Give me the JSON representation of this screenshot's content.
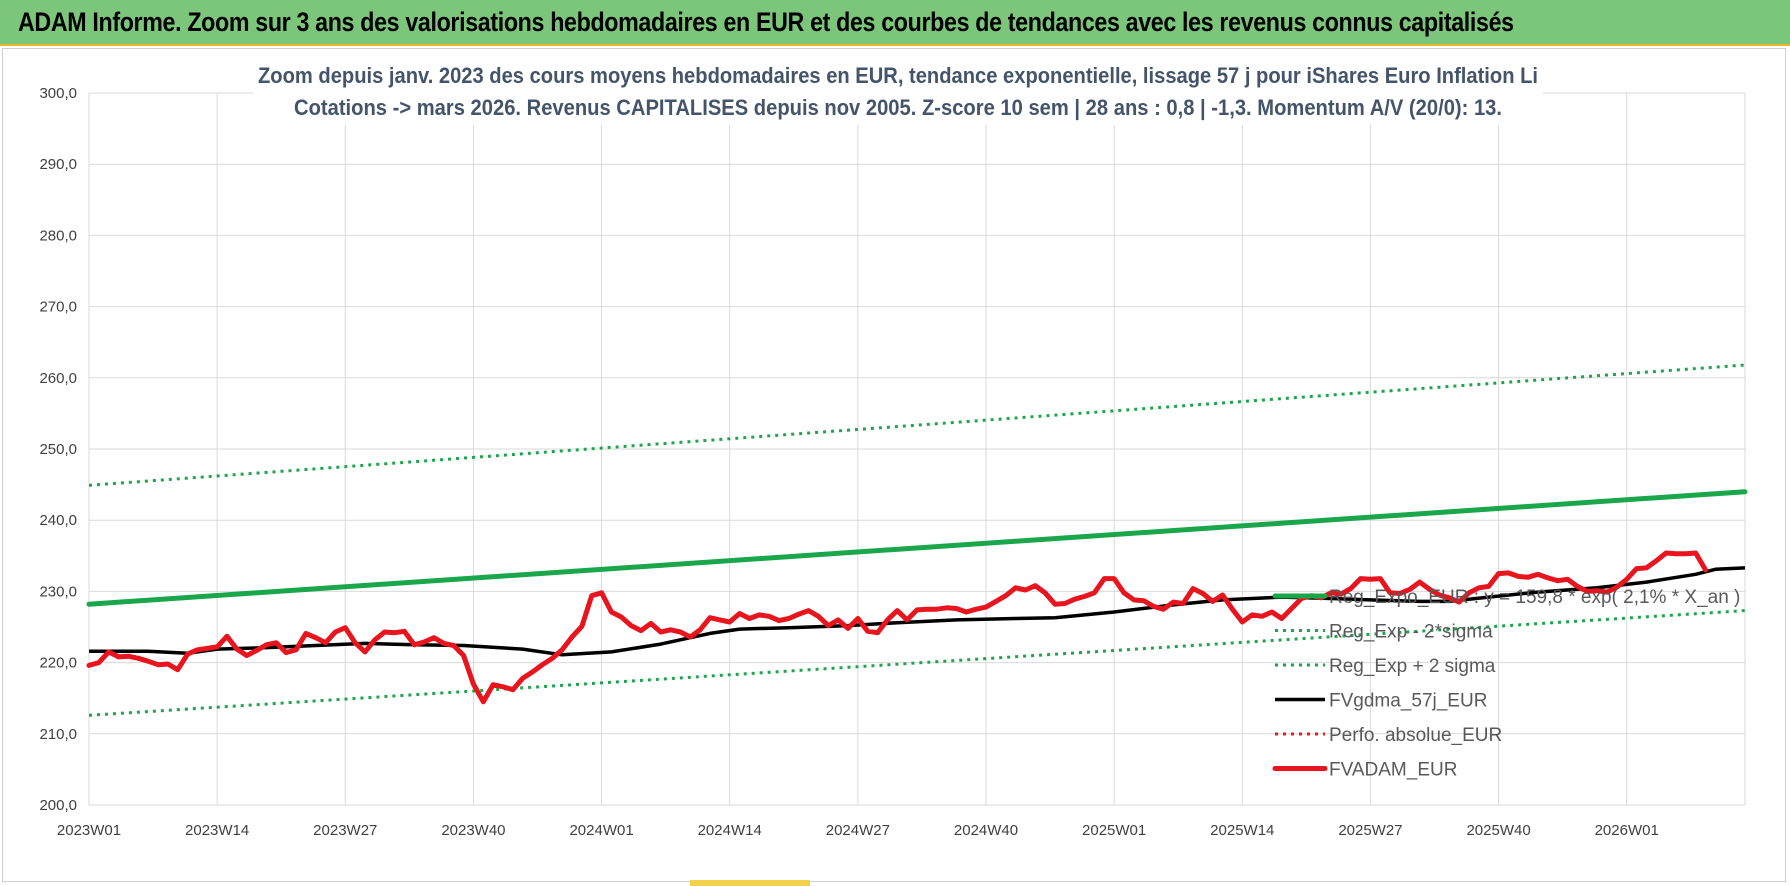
{
  "header": {
    "banner": "ADAM Informe. Zoom sur 3 ans des valorisations hebdomadaires en EUR et des courbes de tendances avec les revenus connus capitalisés"
  },
  "chart_data": {
    "type": "line",
    "title": [
      "Zoom depuis janv. 2023 des cours moyens hebdomadaires en EUR, tendance exponentielle, lissage 57 j pour iShares Euro Inflation Li",
      "Cotations -> mars 2026. Revenus CAPITALISES depuis nov 2005. Z-score 10 sem | 28 ans : 0,8 | -1,3. Momentum A/V (20/0): 13."
    ],
    "xlabel": "",
    "ylabel": "",
    "ylim": [
      200,
      300
    ],
    "yticks": [
      "200,0",
      "210,0",
      "220,0",
      "230,0",
      "240,0",
      "250,0",
      "260,0",
      "270,0",
      "280,0",
      "290,0",
      "300,0"
    ],
    "xticks": [
      "2023W01",
      "2023W14",
      "2023W27",
      "2023W40",
      "2024W01",
      "2024W14",
      "2024W27",
      "2024W40",
      "2025W01",
      "2025W14",
      "2025W27",
      "2025W40",
      "2026W01"
    ],
    "x_start_week_index": 0,
    "x_end_week_index": 168,
    "grid": true,
    "legend_position": "right",
    "series": [
      {
        "name": "Reg_Expo_EUR : y = 159,8 * exp( 2,1% * X_an )",
        "color": "#1aa64a",
        "style": "solid-thick",
        "points": [
          [
            0,
            228.2
          ],
          [
            168,
            244.0
          ]
        ]
      },
      {
        "name": "Reg_Exp - 2*sigma",
        "color": "#1aa64a",
        "style": "dotted",
        "points": [
          [
            0,
            212.6
          ],
          [
            168,
            227.3
          ]
        ]
      },
      {
        "name": "Reg_Exp + 2 sigma",
        "color": "#1aa64a",
        "style": "dotted",
        "points": [
          [
            0,
            244.9
          ],
          [
            168,
            261.8
          ]
        ]
      },
      {
        "name": "FVgdma_57j_EUR",
        "color": "#000000",
        "style": "solid",
        "points": [
          [
            0,
            221.6
          ],
          [
            6,
            221.6
          ],
          [
            10,
            221.3
          ],
          [
            13,
            221.9
          ],
          [
            18,
            222.1
          ],
          [
            23,
            222.4
          ],
          [
            28,
            222.7
          ],
          [
            33,
            222.5
          ],
          [
            38,
            222.4
          ],
          [
            44,
            221.9
          ],
          [
            48,
            221.1
          ],
          [
            53,
            221.5
          ],
          [
            58,
            222.6
          ],
          [
            63,
            224.1
          ],
          [
            66,
            224.7
          ],
          [
            71,
            224.9
          ],
          [
            77,
            225.2
          ],
          [
            82,
            225.6
          ],
          [
            88,
            226.0
          ],
          [
            94,
            226.2
          ],
          [
            98,
            226.3
          ],
          [
            104,
            227.1
          ],
          [
            110,
            228.1
          ],
          [
            115,
            228.8
          ],
          [
            121,
            229.2
          ],
          [
            126,
            229.0
          ],
          [
            130,
            228.8
          ],
          [
            135,
            228.6
          ],
          [
            138,
            228.6
          ],
          [
            142,
            229.2
          ],
          [
            147,
            229.9
          ],
          [
            153,
            230.5
          ],
          [
            158,
            231.3
          ],
          [
            163,
            232.4
          ],
          [
            165,
            233.1
          ],
          [
            168,
            233.3
          ]
        ]
      },
      {
        "name": "Perfo. absolue_EUR",
        "color": "#e02020",
        "style": "dotted",
        "points": []
      },
      {
        "name": "FVADAM_EUR",
        "color": "#e8141e",
        "style": "solid-thick",
        "points": [
          [
            0,
            219.6
          ],
          [
            1,
            220.0
          ],
          [
            2,
            221.5
          ],
          [
            3,
            220.8
          ],
          [
            4,
            220.9
          ],
          [
            5,
            220.6
          ],
          [
            6,
            220.2
          ],
          [
            7,
            219.7
          ],
          [
            8,
            219.8
          ],
          [
            9,
            219.0
          ],
          [
            10,
            221.2
          ],
          [
            11,
            221.8
          ],
          [
            12,
            222.0
          ],
          [
            13,
            222.2
          ],
          [
            14,
            223.7
          ],
          [
            15,
            221.9
          ],
          [
            16,
            221.0
          ],
          [
            17,
            221.7
          ],
          [
            18,
            222.5
          ],
          [
            19,
            222.8
          ],
          [
            20,
            221.4
          ],
          [
            21,
            221.8
          ],
          [
            22,
            224.1
          ],
          [
            23,
            223.5
          ],
          [
            24,
            222.8
          ],
          [
            25,
            224.3
          ],
          [
            26,
            224.9
          ],
          [
            27,
            222.8
          ],
          [
            28,
            221.5
          ],
          [
            29,
            223.2
          ],
          [
            30,
            224.3
          ],
          [
            31,
            224.2
          ],
          [
            32,
            224.4
          ],
          [
            33,
            222.5
          ],
          [
            34,
            222.9
          ],
          [
            35,
            223.5
          ],
          [
            36,
            222.7
          ],
          [
            37,
            222.4
          ],
          [
            38,
            221.0
          ],
          [
            39,
            217.0
          ],
          [
            40,
            214.5
          ],
          [
            41,
            216.9
          ],
          [
            42,
            216.6
          ],
          [
            43,
            216.2
          ],
          [
            44,
            217.8
          ],
          [
            45,
            218.7
          ],
          [
            46,
            219.7
          ],
          [
            47,
            220.6
          ],
          [
            48,
            221.8
          ],
          [
            49,
            223.6
          ],
          [
            50,
            225.1
          ],
          [
            51,
            229.4
          ],
          [
            52,
            229.8
          ],
          [
            53,
            227.1
          ],
          [
            54,
            226.4
          ],
          [
            55,
            225.2
          ],
          [
            56,
            224.5
          ],
          [
            57,
            225.5
          ],
          [
            58,
            224.3
          ],
          [
            59,
            224.6
          ],
          [
            60,
            224.3
          ],
          [
            61,
            223.6
          ],
          [
            62,
            224.6
          ],
          [
            63,
            226.3
          ],
          [
            64,
            226.0
          ],
          [
            65,
            225.7
          ],
          [
            66,
            226.9
          ],
          [
            67,
            226.2
          ],
          [
            68,
            226.7
          ],
          [
            69,
            226.5
          ],
          [
            70,
            225.9
          ],
          [
            71,
            226.2
          ],
          [
            72,
            226.8
          ],
          [
            73,
            227.3
          ],
          [
            74,
            226.5
          ],
          [
            75,
            225.2
          ],
          [
            76,
            226.0
          ],
          [
            77,
            224.8
          ],
          [
            78,
            226.2
          ],
          [
            79,
            224.4
          ],
          [
            80,
            224.2
          ],
          [
            81,
            226.0
          ],
          [
            82,
            227.3
          ],
          [
            83,
            226.0
          ],
          [
            84,
            227.4
          ],
          [
            85,
            227.5
          ],
          [
            86,
            227.5
          ],
          [
            87,
            227.7
          ],
          [
            88,
            227.6
          ],
          [
            89,
            227.1
          ],
          [
            90,
            227.5
          ],
          [
            91,
            227.8
          ],
          [
            92,
            228.6
          ],
          [
            93,
            229.4
          ],
          [
            94,
            230.5
          ],
          [
            95,
            230.2
          ],
          [
            96,
            230.8
          ],
          [
            97,
            229.8
          ],
          [
            98,
            228.2
          ],
          [
            99,
            228.3
          ],
          [
            100,
            228.9
          ],
          [
            101,
            229.3
          ],
          [
            102,
            229.8
          ],
          [
            103,
            231.8
          ],
          [
            104,
            231.8
          ],
          [
            105,
            229.8
          ],
          [
            106,
            228.8
          ],
          [
            107,
            228.7
          ],
          [
            108,
            227.9
          ],
          [
            109,
            227.5
          ],
          [
            110,
            228.5
          ],
          [
            111,
            228.3
          ],
          [
            112,
            230.4
          ],
          [
            113,
            229.7
          ],
          [
            114,
            228.6
          ],
          [
            115,
            229.5
          ],
          [
            116,
            227.5
          ],
          [
            117,
            225.7
          ],
          [
            118,
            226.7
          ],
          [
            119,
            226.5
          ],
          [
            120,
            227.1
          ],
          [
            121,
            226.2
          ],
          [
            122,
            227.6
          ],
          [
            123,
            229.0
          ],
          [
            124,
            229.4
          ],
          [
            125,
            229.1
          ],
          [
            126,
            229.8
          ],
          [
            127,
            229.6
          ],
          [
            128,
            230.4
          ],
          [
            129,
            231.8
          ],
          [
            130,
            231.7
          ],
          [
            131,
            231.8
          ],
          [
            132,
            229.8
          ],
          [
            133,
            229.7
          ],
          [
            134,
            230.3
          ],
          [
            135,
            231.3
          ],
          [
            136,
            230.3
          ],
          [
            137,
            229.5
          ],
          [
            138,
            229.1
          ],
          [
            139,
            228.5
          ],
          [
            140,
            229.8
          ],
          [
            141,
            230.5
          ],
          [
            142,
            230.7
          ],
          [
            143,
            232.5
          ],
          [
            144,
            232.6
          ],
          [
            145,
            232.1
          ],
          [
            146,
            232.0
          ],
          [
            147,
            232.4
          ],
          [
            148,
            231.9
          ],
          [
            149,
            231.5
          ],
          [
            150,
            231.7
          ],
          [
            151,
            230.7
          ],
          [
            152,
            230.0
          ],
          [
            153,
            230.1
          ],
          [
            154,
            229.9
          ],
          [
            155,
            230.6
          ],
          [
            156,
            231.7
          ],
          [
            157,
            233.2
          ],
          [
            158,
            233.3
          ],
          [
            159,
            234.3
          ],
          [
            160,
            235.4
          ],
          [
            161,
            235.3
          ],
          [
            162,
            235.3
          ],
          [
            163,
            235.4
          ],
          [
            164,
            233.0
          ]
        ]
      }
    ]
  }
}
